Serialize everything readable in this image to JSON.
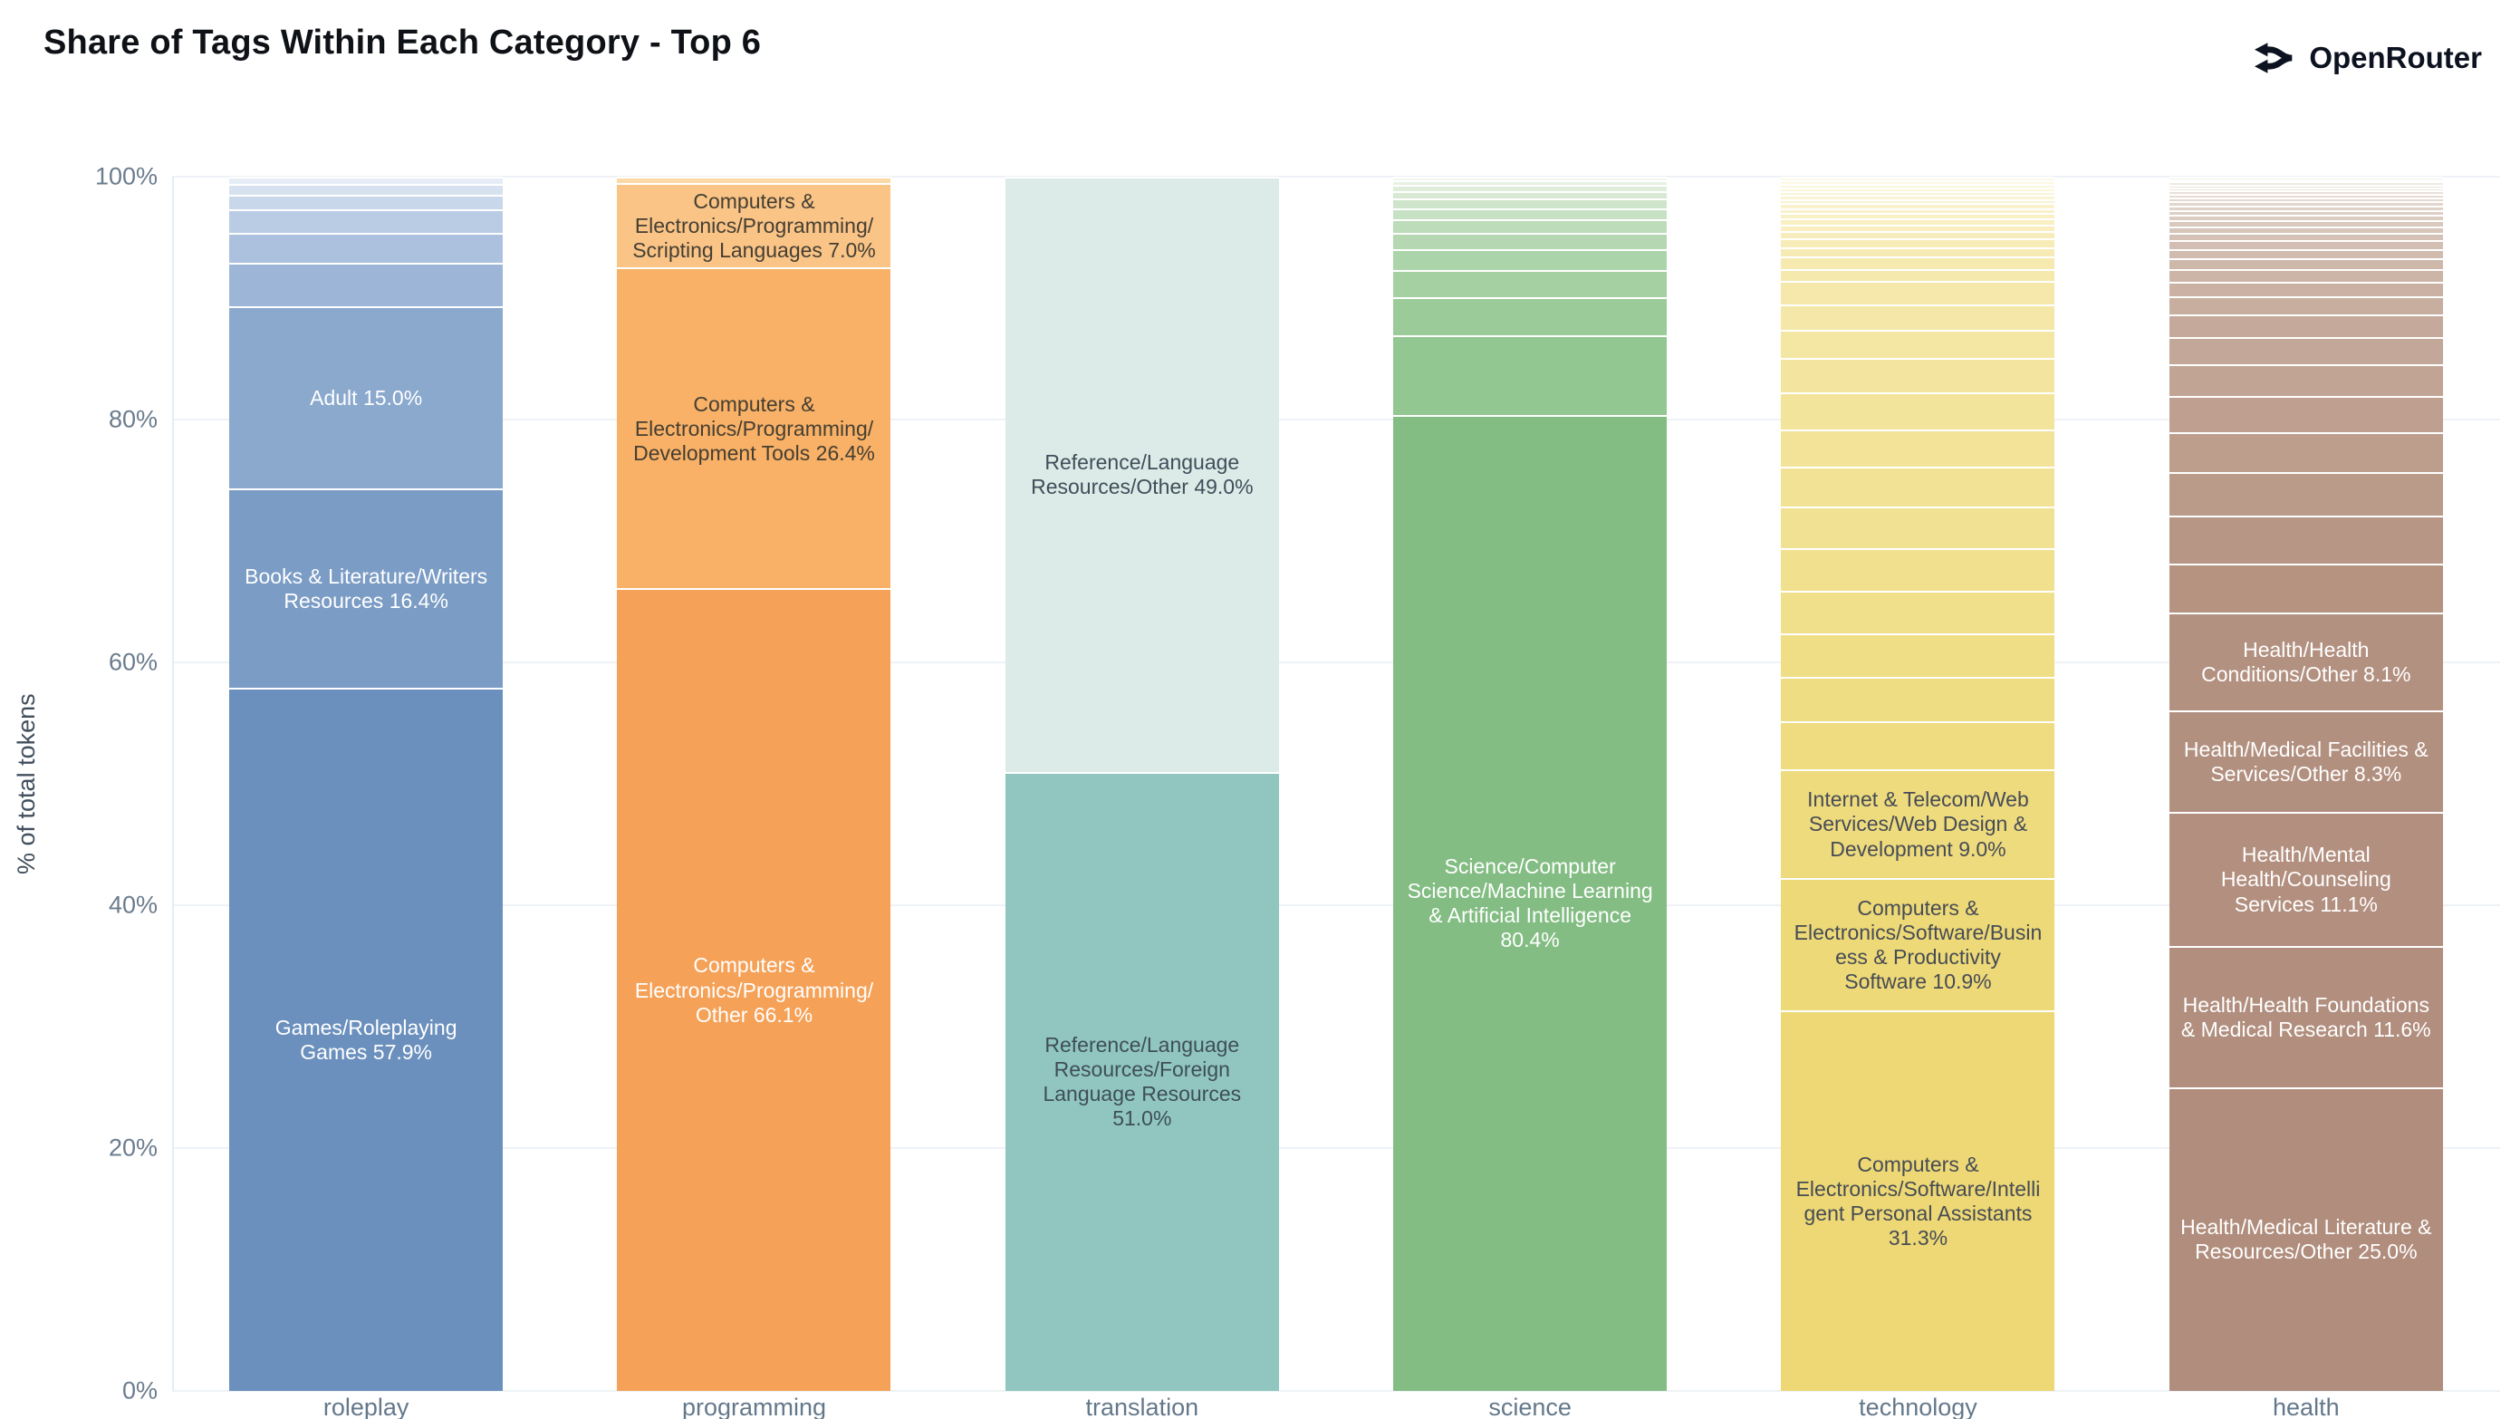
{
  "page": {
    "title": "Share of Tags Within Each Category - Top 6",
    "brand": "OpenRouter"
  },
  "axis": {
    "y_title": "% of total tokens",
    "y_ticks": [
      "0%",
      "20%",
      "40%",
      "60%",
      "80%",
      "100%"
    ],
    "x_categories": [
      "roleplay",
      "programming",
      "translation",
      "science",
      "technology",
      "health"
    ]
  },
  "chart_data": {
    "type": "bar",
    "stacked": true,
    "percent": true,
    "title": "Share of Tags Within Each Category - Top 6",
    "xlabel": "",
    "ylabel": "% of total tokens",
    "ylim": [
      0,
      100
    ],
    "grid": true,
    "legend": "none",
    "categories": [
      "roleplay",
      "programming",
      "translation",
      "science",
      "technology",
      "health"
    ],
    "bars": [
      {
        "category": "roleplay",
        "other_segments": {
          "note": "unlabeled small tags, listed top to bottom",
          "pcts": [
            0.6,
            0.9,
            1.2,
            1.9,
            2.5,
            3.6
          ],
          "color_top": "#e6edf6",
          "color_bottom": "#9db6d8"
        },
        "labeled_segments": [
          {
            "tag": "Adult",
            "pct": 15.0,
            "color": "#8aa9cd",
            "text_color": "#ffffff"
          },
          {
            "tag": "Books & Literature/Writers Resources",
            "pct": 16.4,
            "color": "#7b9cc5",
            "text_color": "#ffffff"
          },
          {
            "tag": "Games/Roleplaying Games",
            "pct": 57.9,
            "color": "#6b90bd",
            "text_color": "#ffffff"
          }
        ]
      },
      {
        "category": "programming",
        "other_segments": {
          "note": "unlabeled small tags, listed top to bottom",
          "pcts": [
            0.5
          ],
          "color_top": "#fbd9a6",
          "color_bottom": "#fbd9a6"
        },
        "labeled_segments": [
          {
            "tag": "Computers & Electronics/Programming/Scripting Languages",
            "pct": 7.0,
            "color": "#f9c486",
            "text_color": "#453e33"
          },
          {
            "tag": "Computers & Electronics/Programming/Development Tools",
            "pct": 26.4,
            "color": "#f8b166",
            "text_color": "#453e33"
          },
          {
            "tag": "Computers & Electronics/Programming/Other",
            "pct": 66.1,
            "color": "#f5a157",
            "text_color": "#ffffff"
          }
        ]
      },
      {
        "category": "translation",
        "other_segments": {
          "note": "unlabeled small tags, listed top to bottom",
          "pcts": [],
          "color_top": "#dcebe7",
          "color_bottom": "#dcebe7"
        },
        "labeled_segments": [
          {
            "tag": "Reference/Language Resources/Other",
            "pct": 49.0,
            "color": "#dcebe7",
            "text_color": "#3f4e59"
          },
          {
            "tag": "Reference/Language Resources/Foreign Language Resources",
            "pct": 51.0,
            "color": "#90c6bf",
            "text_color": "#3f4e59"
          }
        ]
      },
      {
        "category": "science",
        "other_segments": {
          "note": "unlabeled small tags, listed top to bottom",
          "pcts": [
            0.3,
            0.4,
            0.5,
            0.6,
            0.8,
            0.9,
            1.1,
            1.4,
            1.7,
            2.2,
            3.2,
            6.5
          ],
          "color_top": "#f0f6ec",
          "color_bottom": "#93c791"
        },
        "labeled_segments": [
          {
            "tag": "Science/Computer Science/Machine Learning & Artificial Intelligence",
            "pct": 80.4,
            "color": "#83bd83",
            "text_color": "#ffffff"
          }
        ]
      },
      {
        "category": "technology",
        "other_segments": {
          "note": "unlabeled small tags, listed top to bottom",
          "pcts": [
            0.3,
            0.3,
            0.3,
            0.3,
            0.3,
            0.35,
            0.35,
            0.4,
            0.4,
            0.45,
            0.5,
            0.55,
            0.6,
            0.7,
            0.8,
            1.0,
            1.0,
            1.9,
            2.1,
            2.3,
            2.9,
            3.0,
            3.1,
            3.3,
            3.4,
            3.5,
            3.5,
            3.6,
            3.7,
            3.9
          ],
          "color_top": "#fdf9e6",
          "color_bottom": "#efdc80"
        },
        "labeled_segments": [
          {
            "tag": "Internet & Telecom/Web Services/Web Design & Development",
            "pct": 9.0,
            "color": "#eedb7e",
            "text_color": "#474c55"
          },
          {
            "tag": "Computers & Electronics/Software/Business & Productivity Software",
            "pct": 10.9,
            "color": "#edd977",
            "text_color": "#474c55"
          },
          {
            "tag": "Computers & Electronics/Software/Intelligent Personal Assistants",
            "pct": 31.3,
            "color": "#edd875",
            "text_color": "#474c55"
          }
        ]
      },
      {
        "category": "health",
        "other_segments": {
          "note": "unlabeled small tags, listed top to bottom",
          "pcts": [
            0.2,
            0.2,
            0.25,
            0.25,
            0.25,
            0.3,
            0.3,
            0.3,
            0.35,
            0.35,
            0.4,
            0.45,
            0.5,
            0.55,
            0.6,
            0.7,
            0.8,
            0.9,
            1.0,
            1.2,
            1.5,
            1.9,
            2.2,
            2.6,
            3.0,
            3.3,
            3.6,
            3.9,
            4.05
          ],
          "color_top": "#f3f0ea",
          "color_bottom": "#b69381"
        },
        "labeled_segments": [
          {
            "tag": "Health/Health Conditions/Other",
            "pct": 8.1,
            "color": "#b39181",
            "text_color": "#ffffff"
          },
          {
            "tag": "Health/Medical Facilities & Services/Other",
            "pct": 8.3,
            "color": "#b29080",
            "text_color": "#ffffff"
          },
          {
            "tag": "Health/Mental Health/Counseling Services",
            "pct": 11.1,
            "color": "#b28f7f",
            "text_color": "#ffffff"
          },
          {
            "tag": "Health/Health Foundations & Medical Research",
            "pct": 11.6,
            "color": "#b18e7e",
            "text_color": "#ffffff"
          },
          {
            "tag": "Health/Medical Literature & Resources/Other",
            "pct": 25.0,
            "color": "#b08d7c",
            "text_color": "#ffffff"
          }
        ]
      }
    ]
  }
}
